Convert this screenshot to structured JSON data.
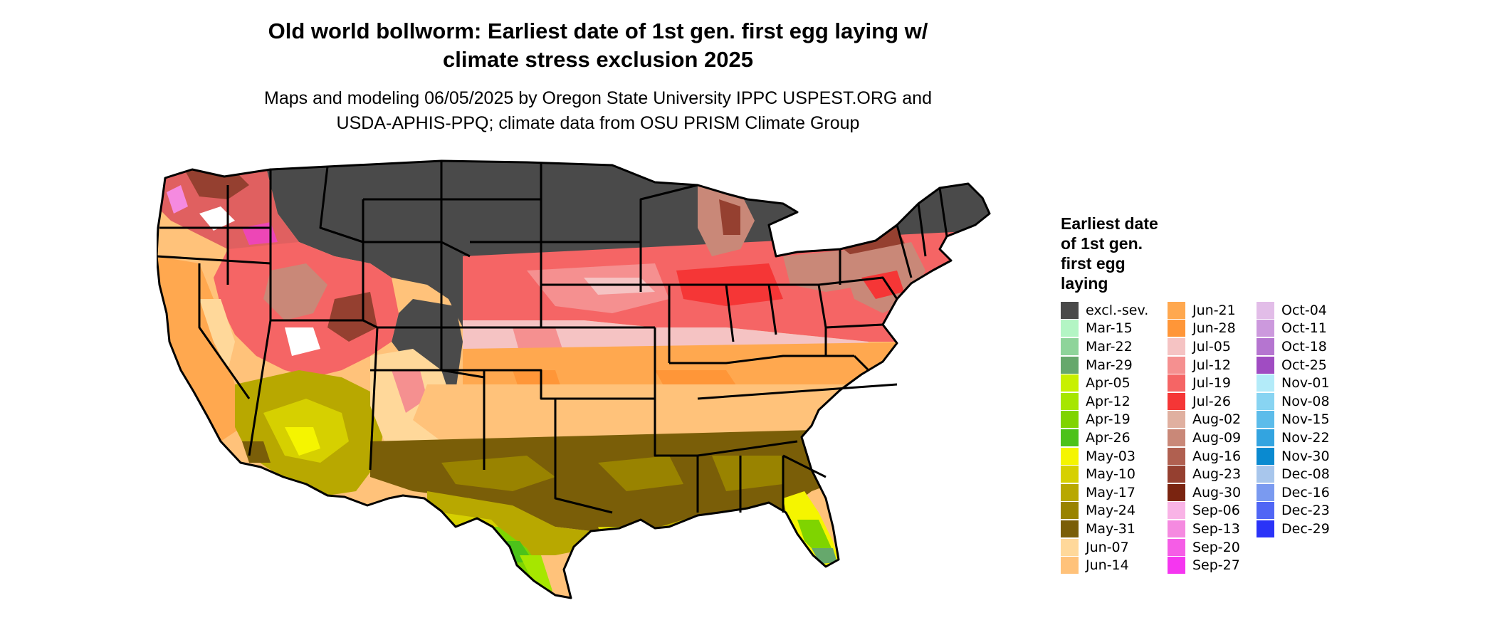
{
  "title": {
    "line1": "Old world bollworm: Earliest date of 1st gen. first egg laying w/",
    "line2": "climate stress exclusion 2025"
  },
  "subtitle": {
    "line1": "Maps and modeling 06/05/2025 by Oregon State University IPPC USPEST.ORG and",
    "line2": "USDA-APHIS-PPQ; climate data from OSU PRISM Climate Group"
  },
  "legend": {
    "title_lines": [
      "Earliest date",
      "of 1st gen.",
      "first egg",
      "laying"
    ],
    "columns": [
      [
        {
          "label": "excl.-sev.",
          "color": "#4a4a4a"
        },
        {
          "label": "Mar-15",
          "color": "#b3f5c4"
        },
        {
          "label": "Mar-22",
          "color": "#8ed49a"
        },
        {
          "label": "Mar-29",
          "color": "#66a86c"
        },
        {
          "label": "Apr-05",
          "color": "#c8f000"
        },
        {
          "label": "Apr-12",
          "color": "#a6e600"
        },
        {
          "label": "Apr-19",
          "color": "#7fd400"
        },
        {
          "label": "Apr-26",
          "color": "#4cc21a"
        },
        {
          "label": "May-03",
          "color": "#f5f500"
        },
        {
          "label": "May-10",
          "color": "#d6d000"
        },
        {
          "label": "May-17",
          "color": "#b8a800"
        },
        {
          "label": "May-24",
          "color": "#998300"
        },
        {
          "label": "May-31",
          "color": "#7a5e08"
        },
        {
          "label": "Jun-07",
          "color": "#ffd89a"
        },
        {
          "label": "Jun-14",
          "color": "#ffc27a"
        }
      ],
      [
        {
          "label": "Jun-21",
          "color": "#ffa84f"
        },
        {
          "label": "Jun-28",
          "color": "#ff9638"
        },
        {
          "label": "Jul-05",
          "color": "#f5c3c3"
        },
        {
          "label": "Jul-12",
          "color": "#f59090"
        },
        {
          "label": "Jul-19",
          "color": "#f56565"
        },
        {
          "label": "Jul-26",
          "color": "#f53636"
        },
        {
          "label": "Aug-02",
          "color": "#e0b0a0"
        },
        {
          "label": "Aug-09",
          "color": "#c98878"
        },
        {
          "label": "Aug-16",
          "color": "#b06050"
        },
        {
          "label": "Aug-23",
          "color": "#954030"
        },
        {
          "label": "Aug-30",
          "color": "#7a2410"
        },
        {
          "label": "Sep-06",
          "color": "#f9b3e6"
        },
        {
          "label": "Sep-13",
          "color": "#f58ae0"
        },
        {
          "label": "Sep-20",
          "color": "#f55de6"
        },
        {
          "label": "Sep-27",
          "color": "#f536f0"
        }
      ],
      [
        {
          "label": "Oct-04",
          "color": "#e2bde8"
        },
        {
          "label": "Oct-11",
          "color": "#cc99dd"
        },
        {
          "label": "Oct-18",
          "color": "#b575d0"
        },
        {
          "label": "Oct-25",
          "color": "#a04cc2"
        },
        {
          "label": "Nov-01",
          "color": "#b3ebf9"
        },
        {
          "label": "Nov-08",
          "color": "#88d4f2"
        },
        {
          "label": "Nov-15",
          "color": "#5cbcea"
        },
        {
          "label": "Nov-22",
          "color": "#33a4e0"
        },
        {
          "label": "Nov-30",
          "color": "#0a8ad0"
        },
        {
          "label": "Dec-08",
          "color": "#a8c6ec"
        },
        {
          "label": "Dec-16",
          "color": "#7a9af0"
        },
        {
          "label": "Dec-23",
          "color": "#5066f5"
        },
        {
          "label": "Dec-29",
          "color": "#2a33f8"
        }
      ]
    ]
  }
}
